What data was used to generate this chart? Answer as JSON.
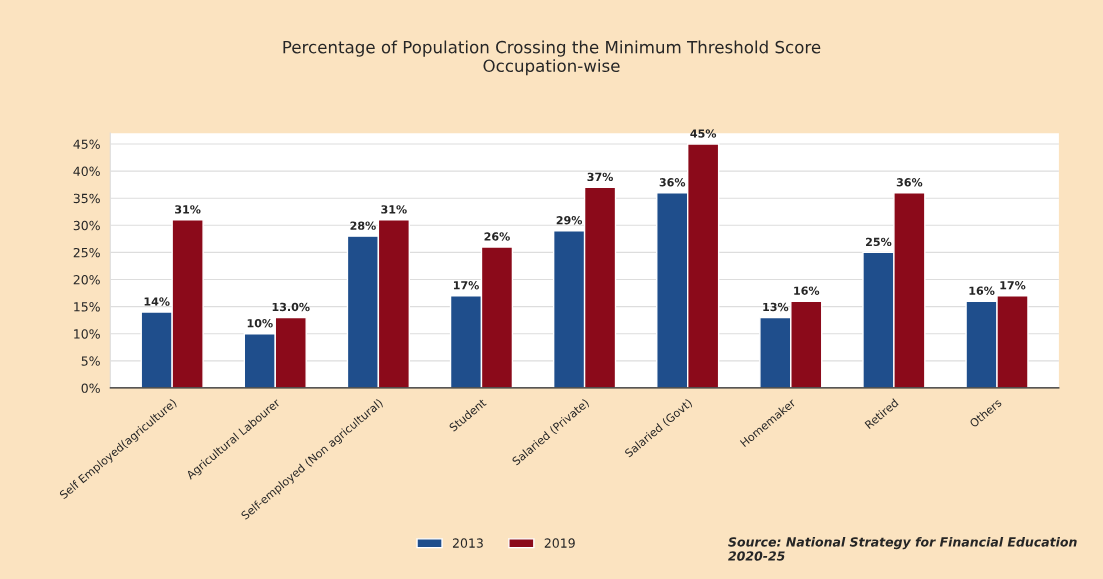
{
  "chart_data": {
    "type": "bar",
    "title": "Percentage of Population Crossing the Minimum Threshold Score\nOccupation-wise",
    "categories": [
      "Self Employed(agriculture)",
      "Agricultural Labourer",
      "Self-employed (Non agricultural)",
      "Student",
      "Salaried (Private)",
      "Salaried (Govt)",
      "Homemaker",
      "Retired",
      "Others"
    ],
    "series": [
      {
        "name": "2013",
        "color": "#1f4e8c",
        "values": [
          14,
          10,
          28,
          17,
          29,
          36,
          13,
          25,
          16
        ],
        "value_labels": [
          "14%",
          "10%",
          "28%",
          "17%",
          "29%",
          "36%",
          "13%",
          "25%",
          "16%"
        ]
      },
      {
        "name": "2019",
        "color": "#8b0a1a",
        "values": [
          31,
          13,
          31,
          26,
          37,
          45,
          16,
          36,
          17
        ],
        "value_labels": [
          "31%",
          "13.0%",
          "31%",
          "26%",
          "37%",
          "45%",
          "16%",
          "36%",
          "17%"
        ]
      }
    ],
    "ylim": [
      0,
      47
    ],
    "yticks": [
      {
        "value": 0,
        "label": "0%"
      },
      {
        "value": 5,
        "label": "5%"
      },
      {
        "value": 10,
        "label": "10%"
      },
      {
        "value": 15,
        "label": "15%"
      },
      {
        "value": 20,
        "label": "20%"
      },
      {
        "value": 25,
        "label": "25%"
      },
      {
        "value": 30,
        "label": "30%"
      },
      {
        "value": 35,
        "label": "35%"
      },
      {
        "value": 40,
        "label": "40%"
      },
      {
        "value": 45,
        "label": "45%"
      }
    ],
    "grid": "y",
    "legend": "bottom",
    "annotations": [
      "Source: National Strategy for Financial Education 2020-25"
    ]
  }
}
